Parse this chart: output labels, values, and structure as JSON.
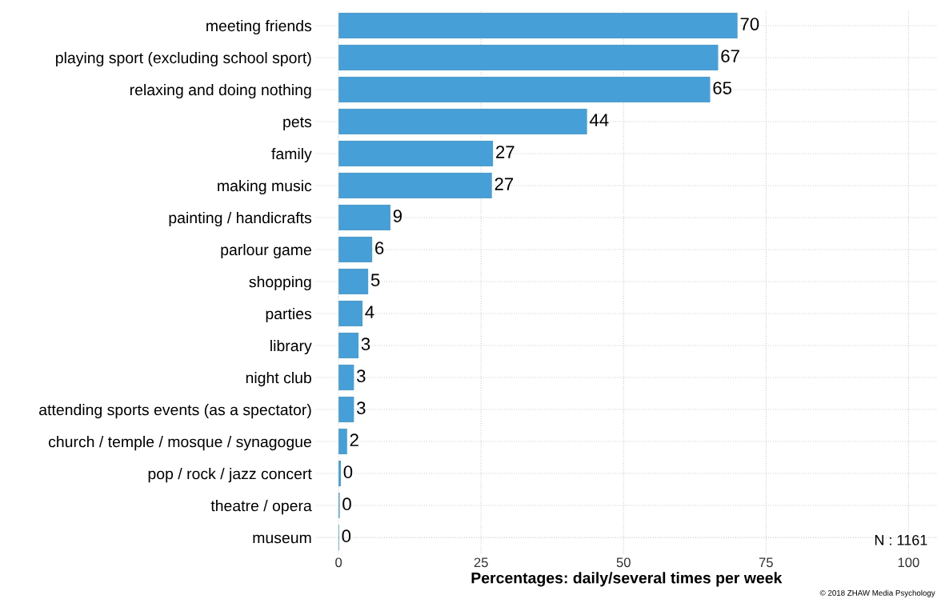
{
  "chart_data": {
    "type": "bar",
    "orientation": "horizontal",
    "categories": [
      "meeting friends",
      "playing sport (excluding school sport)",
      "relaxing and doing nothing",
      "pets",
      "family",
      "making music",
      "painting / handicrafts",
      "parlour game",
      "shopping",
      "parties",
      "library",
      "night club",
      "attending sports events (as a spectator)",
      "church / temple / mosque / synagogue",
      "pop / rock / jazz concert",
      "theatre / opera",
      "museum"
    ],
    "values": [
      70.0,
      66.6,
      65.2,
      43.6,
      27.1,
      26.9,
      9.1,
      5.9,
      5.2,
      4.2,
      3.5,
      2.7,
      2.7,
      1.5,
      0.4,
      0.2,
      0.1
    ],
    "value_labels": [
      "70",
      "67",
      "65",
      "44",
      "27",
      "27",
      "9",
      "6",
      "5",
      "4",
      "3",
      "3",
      "3",
      "2",
      "0",
      "0",
      "0"
    ],
    "color": "#469fd6",
    "xlabel": "Percentages: daily/several times per week",
    "xlim": [
      -4,
      105
    ],
    "xticks": [
      0,
      25,
      50,
      75,
      100
    ],
    "grid": true,
    "legend": false,
    "annotations": [
      "N : 1161",
      "© 2018 ZHAW Media Psychology"
    ]
  }
}
